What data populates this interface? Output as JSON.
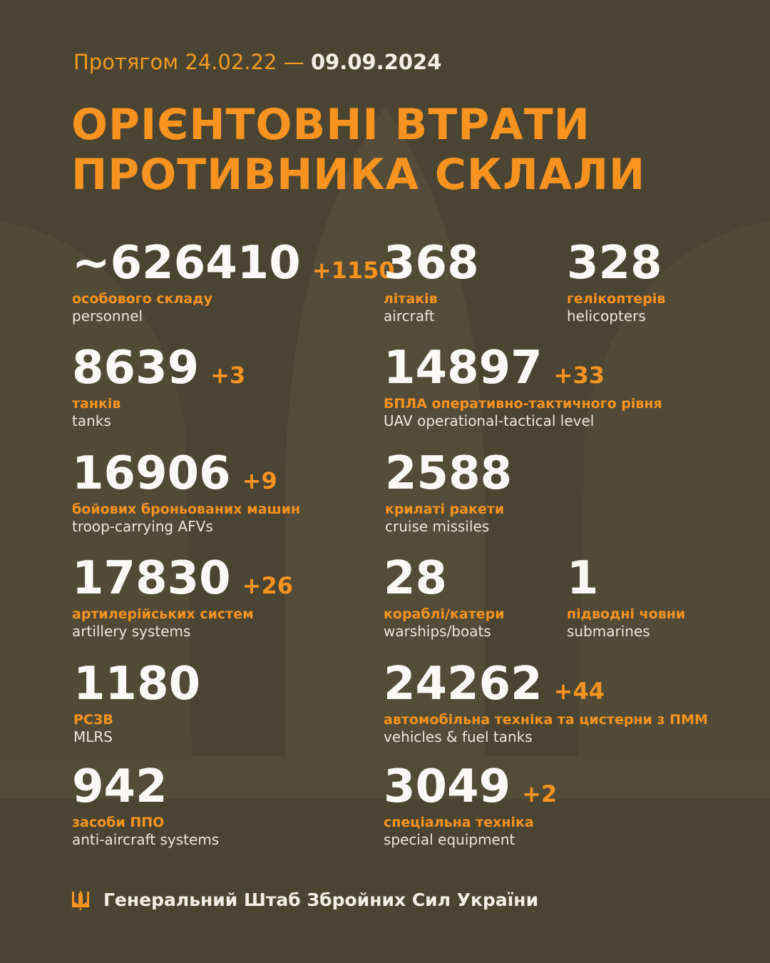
{
  "header": {
    "period": "Протягом 24.02.22 —",
    "date": "09.09.2024",
    "title_lines": [
      "ОРІЄНТОВНІ ВТРАТИ",
      "ПРОТИВНИКА СКЛАЛИ"
    ]
  },
  "stats": [
    {
      "value": "~626410",
      "delta": "+1150",
      "label_uk": "особового складу",
      "label_en": "personnel"
    },
    {
      "value": "368",
      "label_uk": "літаків",
      "label_en": "aircraft"
    },
    {
      "value": "328",
      "label_uk": "гелікоптерів",
      "label_en": "helicopters"
    },
    {
      "value": "8639",
      "delta": "+3",
      "label_uk": "танків",
      "label_en": "tanks"
    },
    {
      "value": "14897",
      "delta": "+33",
      "label_uk": "БПЛА оперативно-тактичного рівня",
      "label_en": "UAV operational-tactical level"
    },
    {
      "value": "16906",
      "delta": "+9",
      "label_uk": "бойових броньованих машин",
      "label_en": "troop-carrying AFVs"
    },
    {
      "value": "2588",
      "label_uk": "крилаті ракети",
      "label_en": "cruise missiles"
    },
    {
      "value": "17830",
      "delta": "+26",
      "label_uk": "артилерійських систем",
      "label_en": "artillery systems"
    },
    {
      "value": "28",
      "label_uk": "кораблі/катери",
      "label_en": "warships/boats"
    },
    {
      "value": "1",
      "label_uk": "підводні човни",
      "label_en": "submarines"
    },
    {
      "value": "1180",
      "label_uk": "РСЗВ",
      "label_en": "MLRS"
    },
    {
      "value": "24262",
      "delta": "+44",
      "label_uk": "автомобільна техніка та цистерни з ПММ",
      "label_en": "vehicles & fuel tanks"
    },
    {
      "value": "942",
      "label_uk": "засоби ППО",
      "label_en": "anti-aircraft systems"
    },
    {
      "value": "3049",
      "delta": "+2",
      "label_uk": "спеціальна техніка",
      "label_en": "special equipment"
    }
  ],
  "footer": {
    "text": "Генеральний Штаб Збройних Сил України"
  }
}
